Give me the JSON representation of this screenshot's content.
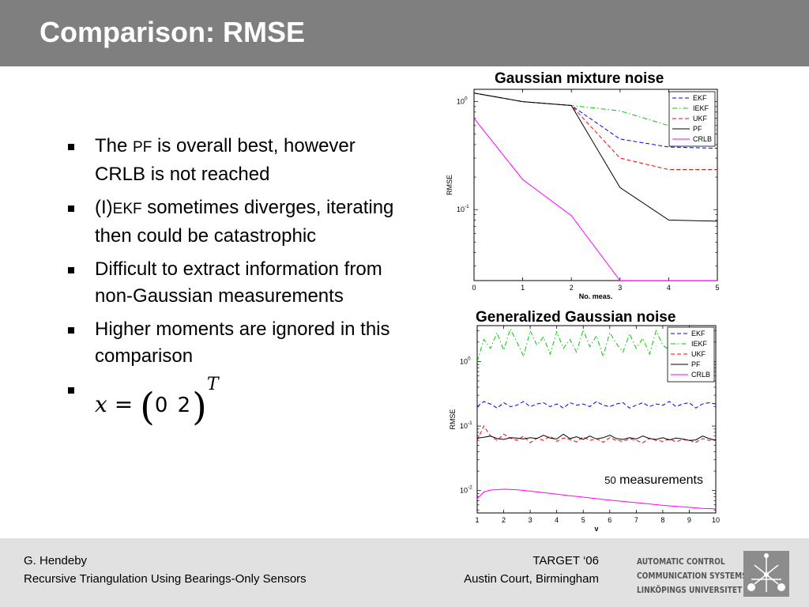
{
  "slide": {
    "title": "Comparison: RMSE",
    "bullets": [
      {
        "pre": "The ",
        "abbr": "PF",
        "post": " is overall best, however CRLB is not reached"
      },
      {
        "pre": "(I)",
        "abbr": "EKF",
        "post": " sometimes diverges, iterating then could be catastrophic"
      },
      {
        "pre": "",
        "abbr": "",
        "post": "Difficult to extract information from non-Gaussian measurements"
      },
      {
        "pre": "",
        "abbr": "",
        "post": "Higher moments are ignored in this comparison"
      }
    ],
    "formula": {
      "var": "x",
      "equals": "=",
      "values": "0   2",
      "sup": "T"
    }
  },
  "footer": {
    "author": "G. Hendeby",
    "paper_title": "Recursive Triangulation Using Bearings-Only Sensors",
    "conference": "TARGET ‘06",
    "venue": "Austin Court, Birmingham",
    "logo_lines": [
      "AUTOMATIC CONTROL",
      "COMMUNICATION SYSTEMS",
      "LINKÖPINGS UNIVERSITET"
    ]
  },
  "chart_data": [
    {
      "type": "line",
      "title": "Gaussian mixture noise",
      "xlabel": "No. meas.",
      "ylabel": "RMSE",
      "y_scale": "log",
      "xlim": [
        0,
        5
      ],
      "ylim": [
        0.022,
        1.3
      ],
      "xticks": [
        "0",
        "1",
        "2",
        "3",
        "4",
        "5"
      ],
      "yticks": [
        {
          "value": 1,
          "base": "10",
          "exp": "0"
        },
        {
          "value": 0.1,
          "base": "10",
          "exp": "-1"
        }
      ],
      "legend_position": "top-right",
      "series": [
        {
          "name": "EKF",
          "color": "#0000ff",
          "dash": "dashed",
          "x": [
            0,
            1,
            2,
            3,
            4,
            5
          ],
          "y": [
            1.2,
            1.0,
            0.92,
            0.45,
            0.38,
            0.37
          ]
        },
        {
          "name": "IEKF",
          "color": "#00cc00",
          "dash": "dashdot",
          "x": [
            0,
            1,
            2,
            3,
            4,
            5
          ],
          "y": [
            1.2,
            1.0,
            0.92,
            0.82,
            0.6,
            0.55
          ]
        },
        {
          "name": "UKF",
          "color": "#ff0000",
          "dash": "dashed",
          "x": [
            0,
            1,
            2,
            3,
            4,
            5
          ],
          "y": [
            1.2,
            1.0,
            0.92,
            0.3,
            0.235,
            0.235
          ]
        },
        {
          "name": "PF",
          "color": "#000000",
          "dash": "solid",
          "x": [
            0,
            1,
            2,
            3,
            4,
            5
          ],
          "y": [
            1.2,
            1.0,
            0.92,
            0.16,
            0.08,
            0.078
          ]
        },
        {
          "name": "CRLB",
          "color": "#ff00ff",
          "dash": "solid",
          "x": [
            0,
            1,
            2,
            3,
            4,
            5
          ],
          "y": [
            0.7,
            0.19,
            0.088,
            0.022,
            0.022,
            0.022
          ]
        }
      ]
    },
    {
      "type": "line",
      "title": "Generalized Gaussian noise",
      "xlabel": "ν",
      "ylabel": "RMSE",
      "y_scale": "log",
      "xlim": [
        1,
        10
      ],
      "ylim": [
        0.0045,
        3.6
      ],
      "xticks": [
        "1",
        "2",
        "3",
        "4",
        "5",
        "6",
        "7",
        "8",
        "9",
        "10"
      ],
      "yticks": [
        {
          "value": 1,
          "base": "10",
          "exp": "0"
        },
        {
          "value": 0.1,
          "base": "10",
          "exp": "-1"
        },
        {
          "value": 0.01,
          "base": "10",
          "exp": "-2"
        }
      ],
      "legend_position": "top-right",
      "annotation": {
        "prefix": "50",
        "text": " measurements"
      },
      "series": [
        {
          "name": "EKF",
          "color": "#0000ff",
          "dash": "dashed",
          "x": [
            1,
            1.25,
            1.5,
            1.75,
            2,
            2.25,
            2.5,
            2.75,
            3,
            3.25,
            3.5,
            3.75,
            4,
            4.25,
            4.5,
            4.75,
            5,
            5.25,
            5.5,
            5.75,
            6,
            6.25,
            6.5,
            6.75,
            7,
            7.25,
            7.5,
            7.75,
            8,
            8.25,
            8.5,
            8.75,
            9,
            9.25,
            9.5,
            9.75,
            10
          ],
          "y": [
            0.2,
            0.24,
            0.22,
            0.19,
            0.23,
            0.2,
            0.21,
            0.24,
            0.2,
            0.22,
            0.23,
            0.2,
            0.22,
            0.19,
            0.23,
            0.21,
            0.22,
            0.2,
            0.24,
            0.21,
            0.2,
            0.22,
            0.23,
            0.19,
            0.21,
            0.23,
            0.2,
            0.22,
            0.21,
            0.24,
            0.2,
            0.22,
            0.23,
            0.19,
            0.22,
            0.23,
            0.22
          ]
        },
        {
          "name": "IEKF",
          "color": "#00cc00",
          "dash": "dashdot",
          "x": [
            1,
            1.25,
            1.5,
            1.75,
            2,
            2.25,
            2.5,
            2.75,
            3,
            3.25,
            3.5,
            3.75,
            4,
            4.25,
            4.5,
            4.75,
            5,
            5.25,
            5.5,
            5.75,
            6,
            6.25,
            6.5,
            6.75,
            7,
            7.25,
            7.5,
            7.75,
            8,
            8.25,
            8.5,
            8.75,
            9,
            9.25,
            9.5,
            9.75,
            10
          ],
          "y": [
            1.0,
            2.2,
            1.6,
            2.8,
            1.5,
            3.2,
            2.0,
            1.2,
            3.0,
            1.8,
            2.4,
            1.3,
            2.9,
            1.6,
            2.2,
            1.4,
            3.1,
            1.7,
            2.5,
            1.2,
            2.8,
            1.9,
            1.4,
            2.7,
            1.6,
            2.3,
            1.3,
            3.0,
            1.8,
            1.5,
            2.6,
            1.4,
            2.2,
            1.7,
            1.3,
            1.8,
            1.6
          ]
        },
        {
          "name": "UKF",
          "color": "#ff0000",
          "dash": "dashed",
          "x": [
            1,
            1.25,
            1.5,
            1.75,
            2,
            2.25,
            2.5,
            2.75,
            3,
            3.25,
            3.5,
            3.75,
            4,
            4.25,
            4.5,
            4.75,
            5,
            5.25,
            5.5,
            5.75,
            6,
            6.25,
            6.5,
            6.75,
            7,
            7.25,
            7.5,
            7.75,
            8,
            8.25,
            8.5,
            8.75,
            9,
            9.25,
            9.5,
            9.75,
            10
          ],
          "y": [
            0.06,
            0.1,
            0.07,
            0.06,
            0.075,
            0.065,
            0.06,
            0.07,
            0.055,
            0.065,
            0.06,
            0.07,
            0.058,
            0.065,
            0.062,
            0.057,
            0.068,
            0.06,
            0.064,
            0.056,
            0.066,
            0.06,
            0.058,
            0.064,
            0.06,
            0.055,
            0.065,
            0.06,
            0.058,
            0.063,
            0.057,
            0.062,
            0.06,
            0.056,
            0.064,
            0.06,
            0.062
          ]
        },
        {
          "name": "PF",
          "color": "#000000",
          "dash": "solid",
          "x": [
            1,
            1.25,
            1.5,
            1.75,
            2,
            2.25,
            2.5,
            2.75,
            3,
            3.25,
            3.5,
            3.75,
            4,
            4.25,
            4.5,
            4.75,
            5,
            5.25,
            5.5,
            5.75,
            6,
            6.25,
            6.5,
            6.75,
            7,
            7.25,
            7.5,
            7.75,
            8,
            8.25,
            8.5,
            8.75,
            9,
            9.25,
            9.5,
            9.75,
            10
          ],
          "y": [
            0.065,
            0.067,
            0.07,
            0.064,
            0.062,
            0.066,
            0.065,
            0.063,
            0.066,
            0.064,
            0.072,
            0.065,
            0.063,
            0.075,
            0.064,
            0.068,
            0.062,
            0.07,
            0.063,
            0.066,
            0.072,
            0.064,
            0.062,
            0.066,
            0.063,
            0.07,
            0.064,
            0.062,
            0.066,
            0.061,
            0.065,
            0.063,
            0.06,
            0.061,
            0.07,
            0.064,
            0.06
          ]
        },
        {
          "name": "CRLB",
          "color": "#ff00ff",
          "dash": "solid",
          "x": [
            1,
            1.25,
            1.5,
            2,
            2.5,
            3,
            3.5,
            4,
            4.5,
            5,
            5.5,
            6,
            6.5,
            7,
            7.5,
            8,
            8.5,
            9,
            9.5,
            10
          ],
          "y": [
            0.0075,
            0.0095,
            0.0102,
            0.0105,
            0.0103,
            0.0098,
            0.0093,
            0.0088,
            0.0083,
            0.0079,
            0.0075,
            0.0071,
            0.0068,
            0.0065,
            0.0062,
            0.0059,
            0.0057,
            0.0055,
            0.0053,
            0.0052
          ]
        }
      ]
    }
  ]
}
